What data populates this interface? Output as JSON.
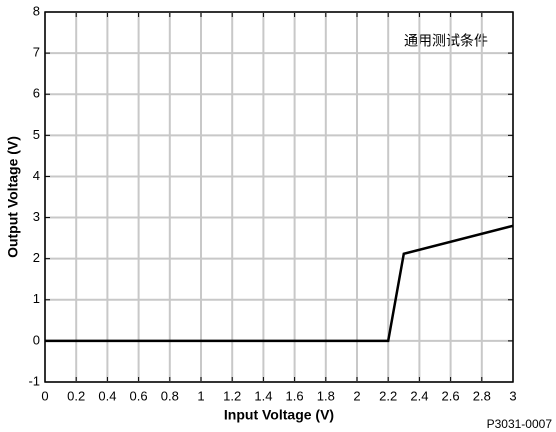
{
  "chart_data": {
    "type": "line",
    "xlabel": "Input Voltage (V)",
    "ylabel": "Output Voltage (V)",
    "annotation": "通用测试条件",
    "footnote": "P3031-0007",
    "x": [
      0,
      2.2,
      2.3,
      3
    ],
    "series": [
      {
        "name": "Output",
        "color": "#000000",
        "values": [
          0,
          0,
          2.12,
          2.8
        ]
      }
    ],
    "xlim": [
      0,
      3
    ],
    "ylim": [
      -1,
      8
    ],
    "xticks": [
      0,
      0.2,
      0.4,
      0.6,
      0.8,
      1,
      1.2,
      1.4,
      1.6,
      1.8,
      2,
      2.2,
      2.4,
      2.6,
      2.8,
      3
    ],
    "yticks": [
      -1,
      0,
      1,
      2,
      3,
      4,
      5,
      6,
      7,
      8
    ],
    "grid": true
  }
}
